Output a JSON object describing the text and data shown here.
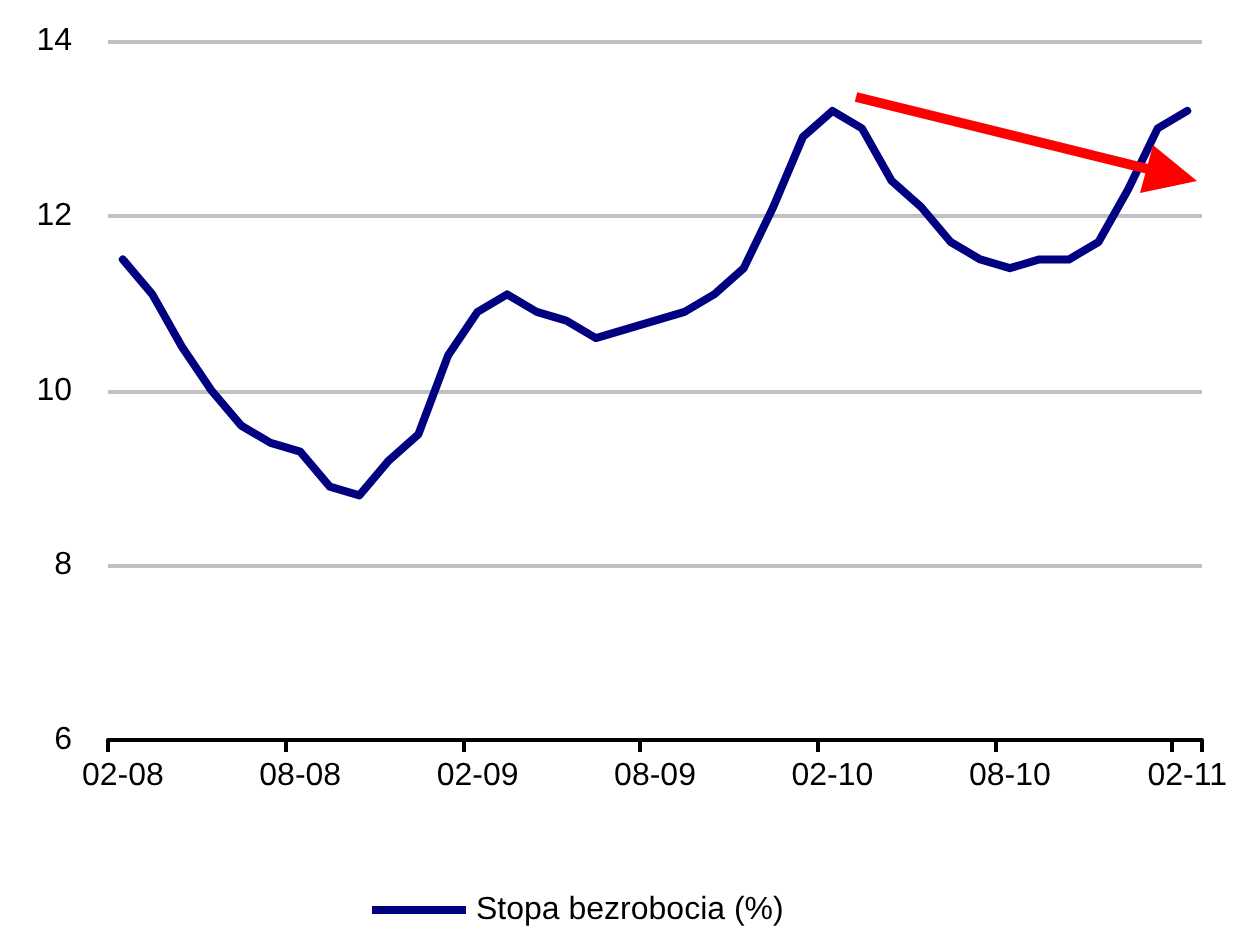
{
  "chart_data": {
    "type": "line",
    "categories": [
      "02-08",
      null,
      null,
      null,
      null,
      null,
      "08-08",
      null,
      null,
      null,
      null,
      null,
      "02-09",
      null,
      null,
      null,
      null,
      null,
      "08-09",
      null,
      null,
      null,
      null,
      null,
      "02-10",
      null,
      null,
      null,
      null,
      null,
      "08-10",
      null,
      null,
      null,
      null,
      null,
      "02-11"
    ],
    "series": [
      {
        "name": "Stopa bezrobocia (%)",
        "color": "#000080",
        "values": [
          11.5,
          11.1,
          10.5,
          10.0,
          9.6,
          9.4,
          9.3,
          8.9,
          8.8,
          9.2,
          9.5,
          10.4,
          10.9,
          11.1,
          10.9,
          10.8,
          10.6,
          10.7,
          10.8,
          10.9,
          11.1,
          11.4,
          12.1,
          12.9,
          13.2,
          13.0,
          12.4,
          12.1,
          11.7,
          11.5,
          11.4,
          11.5,
          11.5,
          11.7,
          12.3,
          13.0,
          13.2
        ]
      }
    ],
    "ylim": [
      6,
      14
    ],
    "yticks": [
      6,
      8,
      10,
      12,
      14
    ],
    "grid": "y",
    "legend": "bottom",
    "marker": "none",
    "line_style": "solid"
  }
}
